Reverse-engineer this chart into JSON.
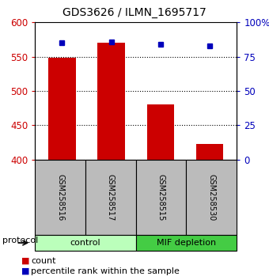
{
  "title": "GDS3626 / ILMN_1695717",
  "samples": [
    "GSM258516",
    "GSM258517",
    "GSM258515",
    "GSM258530"
  ],
  "counts": [
    549,
    570,
    480,
    423
  ],
  "percentile_ranks": [
    85,
    86,
    84,
    83
  ],
  "ylim_left": [
    400,
    600
  ],
  "ylim_right": [
    0,
    100
  ],
  "yticks_left": [
    400,
    450,
    500,
    550,
    600
  ],
  "yticks_right": [
    0,
    25,
    50,
    75,
    100
  ],
  "ytick_labels_right": [
    "0",
    "25",
    "50",
    "75",
    "100%"
  ],
  "grid_values": [
    450,
    500,
    550
  ],
  "bar_color": "#cc0000",
  "dot_color": "#0000bb",
  "bar_width": 0.55,
  "group_control_color": "#bbffbb",
  "group_mif_color": "#44cc44",
  "label_box_color": "#bbbbbb",
  "protocol_label": "protocol",
  "legend_count": "count",
  "legend_pct": "percentile rank within the sample",
  "background_color": "#ffffff"
}
